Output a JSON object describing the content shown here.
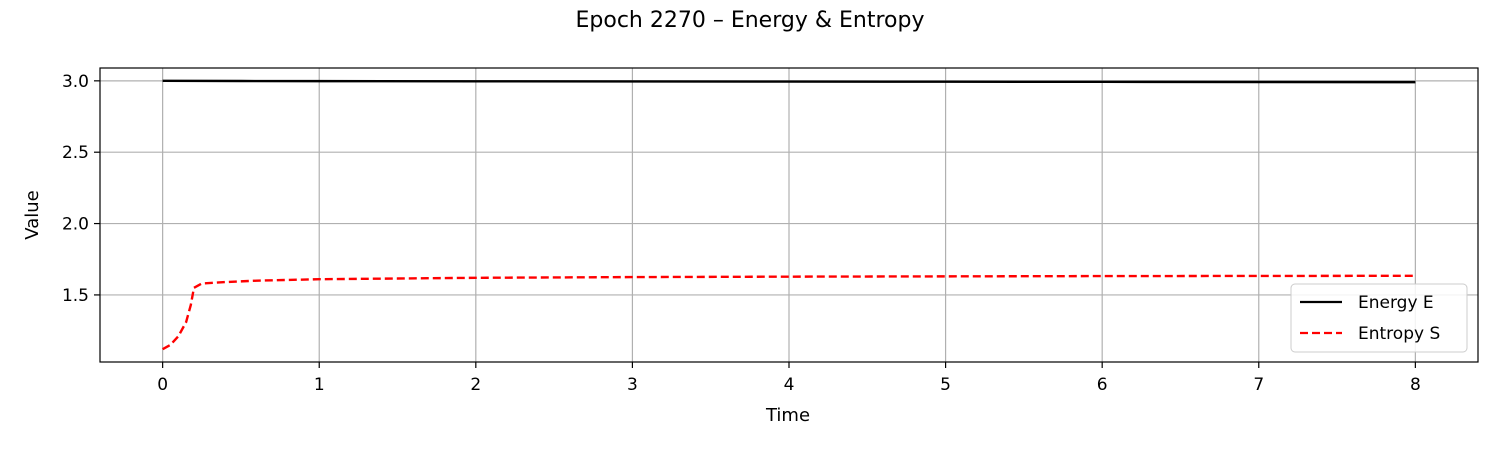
{
  "chart_data": {
    "type": "line",
    "title": "Epoch 2270 – Energy & Entropy",
    "xlabel": "Time",
    "ylabel": "Value",
    "xlim": [
      -0.4,
      8.4
    ],
    "ylim": [
      1.03,
      3.09
    ],
    "xticks": [
      0,
      1,
      2,
      3,
      4,
      5,
      6,
      7,
      8
    ],
    "yticks": [
      1.5,
      2.0,
      2.5,
      3.0
    ],
    "xtick_labels": [
      "0",
      "1",
      "2",
      "3",
      "4",
      "5",
      "6",
      "7",
      "8"
    ],
    "ytick_labels": [
      "1.5",
      "2.0",
      "2.5",
      "3.0"
    ],
    "grid": true,
    "legend_position": "lower-right",
    "series": [
      {
        "name": "Energy E",
        "color": "#000000",
        "style": "solid",
        "x": [
          0,
          0.5,
          1,
          2,
          3,
          4,
          5,
          6,
          7,
          8
        ],
        "y": [
          3.0,
          2.999,
          2.998,
          2.997,
          2.996,
          2.995,
          2.994,
          2.993,
          2.992,
          2.991
        ]
      },
      {
        "name": "Entropy S",
        "color": "#ff0000",
        "style": "dashed",
        "x": [
          0,
          0.05,
          0.1,
          0.15,
          0.18,
          0.2,
          0.25,
          0.4,
          0.6,
          1,
          1.5,
          2,
          3,
          4,
          5,
          6,
          7,
          8
        ],
        "y": [
          1.12,
          1.15,
          1.21,
          1.31,
          1.43,
          1.55,
          1.58,
          1.59,
          1.6,
          1.61,
          1.615,
          1.62,
          1.625,
          1.628,
          1.63,
          1.632,
          1.633,
          1.634
        ]
      }
    ]
  }
}
